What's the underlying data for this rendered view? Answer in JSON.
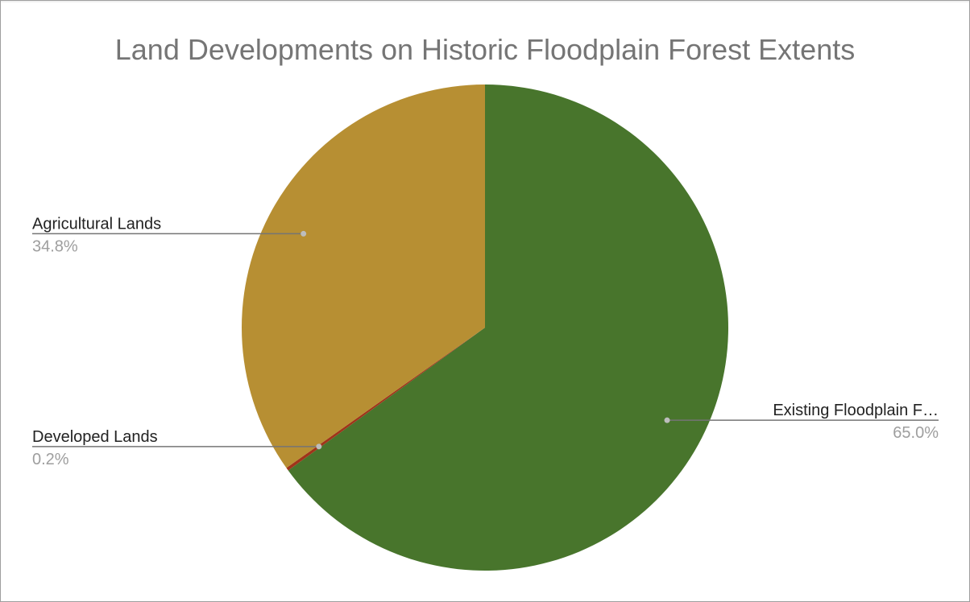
{
  "chart_data": {
    "type": "pie",
    "title": "Land Developments on Historic Floodplain Forest Extents",
    "start_angle_deg": 0,
    "direction": "clockwise",
    "slices": [
      {
        "label": "Existing Floodplain F…",
        "value": 65.0,
        "value_label": "65.0%",
        "color": "#48752c"
      },
      {
        "label": "Developed Lands",
        "value": 0.2,
        "value_label": "0.2%",
        "color": "#a0341a"
      },
      {
        "label": "Agricultural Lands",
        "value": 34.8,
        "value_label": "34.8%",
        "color": "#b78f33"
      }
    ],
    "legend": "none",
    "label_style": "callout"
  }
}
